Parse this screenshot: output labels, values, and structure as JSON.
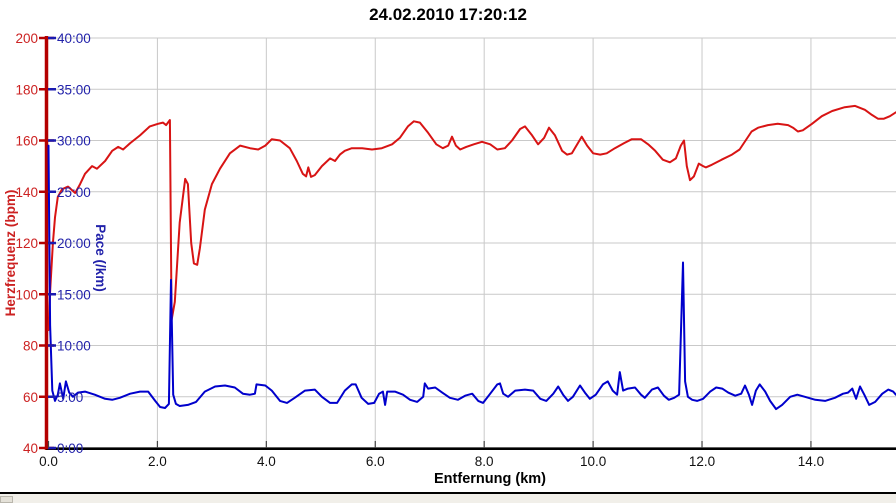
{
  "chart_data": {
    "type": "line",
    "title": "24.02.2010 17:20:12",
    "xlabel": "Entfernung (km)",
    "ylabel_left": "Herzfrequenz (bpm)",
    "ylabel_left2": "Pace (/km)",
    "x_range": [
      0,
      15.6
    ],
    "grid": true,
    "legend": "none",
    "x_ticks": [
      {
        "v": 0,
        "label": "0.0"
      },
      {
        "v": 2,
        "label": "2.0"
      },
      {
        "v": 4,
        "label": "4.0"
      },
      {
        "v": 6,
        "label": "6.0"
      },
      {
        "v": 8,
        "label": "8.0"
      },
      {
        "v": 10,
        "label": "10.0"
      },
      {
        "v": 12,
        "label": "12.0"
      },
      {
        "v": 14,
        "label": "14.0"
      }
    ],
    "axes": {
      "heart_rate": {
        "range": [
          40,
          200
        ],
        "label_color": "#cc2222",
        "axis_color": "#b40000",
        "ticks": [
          {
            "v": 200,
            "label": "200"
          },
          {
            "v": 180,
            "label": "180"
          },
          {
            "v": 160,
            "label": "160"
          },
          {
            "v": 140,
            "label": "140"
          },
          {
            "v": 120,
            "label": "120"
          },
          {
            "v": 100,
            "label": "100"
          },
          {
            "v": 80,
            "label": "80"
          },
          {
            "v": 60,
            "label": "60"
          },
          {
            "v": 40,
            "label": "40"
          }
        ]
      },
      "pace": {
        "range": [
          0,
          40
        ],
        "label_color": "#2222aa",
        "axis_color": "#1a1ab0",
        "ticks": [
          {
            "v": 40,
            "label": "40:00"
          },
          {
            "v": 35,
            "label": "35:00"
          },
          {
            "v": 30,
            "label": "30:00"
          },
          {
            "v": 25,
            "label": "25:00"
          },
          {
            "v": 20,
            "label": "20:00"
          },
          {
            "v": 15,
            "label": "15:00"
          },
          {
            "v": 10,
            "label": "10:00"
          },
          {
            "v": 5,
            "label": "5:00"
          },
          {
            "v": 0,
            "label": "0:00"
          }
        ]
      }
    },
    "series": [
      {
        "name": "Herzfrequenz (bpm)",
        "axis": "heart_rate",
        "color": "#d81414",
        "points": [
          [
            0.0,
            86
          ],
          [
            0.03,
            101
          ],
          [
            0.08,
            120
          ],
          [
            0.12,
            130
          ],
          [
            0.17,
            138
          ],
          [
            0.25,
            141
          ],
          [
            0.36,
            142
          ],
          [
            0.49,
            139.5
          ],
          [
            0.58,
            143
          ],
          [
            0.67,
            147
          ],
          [
            0.8,
            150
          ],
          [
            0.89,
            149
          ],
          [
            1.04,
            152
          ],
          [
            1.17,
            156
          ],
          [
            1.28,
            157.5
          ],
          [
            1.37,
            156.5
          ],
          [
            1.5,
            159
          ],
          [
            1.68,
            162
          ],
          [
            1.86,
            165.5
          ],
          [
            2.01,
            166.5
          ],
          [
            2.1,
            167
          ],
          [
            2.16,
            166
          ],
          [
            2.23,
            168
          ],
          [
            2.26,
            90
          ],
          [
            2.32,
            97
          ],
          [
            2.41,
            128
          ],
          [
            2.51,
            145
          ],
          [
            2.56,
            143
          ],
          [
            2.62,
            120
          ],
          [
            2.67,
            112
          ],
          [
            2.73,
            111.5
          ],
          [
            2.78,
            118
          ],
          [
            2.87,
            133
          ],
          [
            3.0,
            143
          ],
          [
            3.15,
            149
          ],
          [
            3.33,
            155
          ],
          [
            3.52,
            158
          ],
          [
            3.7,
            157
          ],
          [
            3.85,
            156.5
          ],
          [
            3.98,
            158
          ],
          [
            4.1,
            160.5
          ],
          [
            4.25,
            160
          ],
          [
            4.43,
            157
          ],
          [
            4.56,
            152
          ],
          [
            4.67,
            147
          ],
          [
            4.73,
            146
          ],
          [
            4.77,
            149.5
          ],
          [
            4.82,
            145.8
          ],
          [
            4.89,
            146.5
          ],
          [
            5.02,
            150
          ],
          [
            5.17,
            153
          ],
          [
            5.26,
            152
          ],
          [
            5.35,
            154.5
          ],
          [
            5.44,
            156
          ],
          [
            5.57,
            157
          ],
          [
            5.76,
            157
          ],
          [
            5.94,
            156.5
          ],
          [
            6.12,
            157
          ],
          [
            6.31,
            158.5
          ],
          [
            6.45,
            161
          ],
          [
            6.6,
            165.5
          ],
          [
            6.71,
            167.5
          ],
          [
            6.82,
            167
          ],
          [
            6.97,
            163
          ],
          [
            7.12,
            158.5
          ],
          [
            7.24,
            157
          ],
          [
            7.34,
            158
          ],
          [
            7.41,
            161.5
          ],
          [
            7.48,
            158
          ],
          [
            7.56,
            156.5
          ],
          [
            7.67,
            157.5
          ],
          [
            7.81,
            158.5
          ],
          [
            7.96,
            159.5
          ],
          [
            8.11,
            158.5
          ],
          [
            8.24,
            156.5
          ],
          [
            8.38,
            157
          ],
          [
            8.51,
            160
          ],
          [
            8.66,
            164.5
          ],
          [
            8.75,
            165.5
          ],
          [
            8.88,
            162
          ],
          [
            8.99,
            158.5
          ],
          [
            9.1,
            161
          ],
          [
            9.19,
            165
          ],
          [
            9.3,
            162
          ],
          [
            9.43,
            156
          ],
          [
            9.52,
            154.5
          ],
          [
            9.61,
            155
          ],
          [
            9.72,
            159
          ],
          [
            9.79,
            161.5
          ],
          [
            9.89,
            158
          ],
          [
            10.0,
            155
          ],
          [
            10.13,
            154.5
          ],
          [
            10.25,
            155
          ],
          [
            10.4,
            157
          ],
          [
            10.57,
            159
          ],
          [
            10.71,
            160.5
          ],
          [
            10.88,
            160.5
          ],
          [
            11.01,
            158.5
          ],
          [
            11.14,
            156
          ],
          [
            11.28,
            152.5
          ],
          [
            11.41,
            151.5
          ],
          [
            11.52,
            153
          ],
          [
            11.61,
            158
          ],
          [
            11.67,
            160
          ],
          [
            11.72,
            150
          ],
          [
            11.78,
            144.5
          ],
          [
            11.85,
            146
          ],
          [
            11.94,
            151
          ],
          [
            12.02,
            150
          ],
          [
            12.07,
            149.5
          ],
          [
            12.18,
            150.5
          ],
          [
            12.36,
            152.5
          ],
          [
            12.55,
            154.5
          ],
          [
            12.69,
            156.5
          ],
          [
            12.8,
            160
          ],
          [
            12.91,
            163.5
          ],
          [
            13.03,
            165
          ],
          [
            13.21,
            166
          ],
          [
            13.39,
            166.5
          ],
          [
            13.58,
            166
          ],
          [
            13.67,
            165
          ],
          [
            13.76,
            163.5
          ],
          [
            13.85,
            164
          ],
          [
            14.02,
            166.5
          ],
          [
            14.2,
            169.5
          ],
          [
            14.39,
            171.5
          ],
          [
            14.62,
            173
          ],
          [
            14.81,
            173.5
          ],
          [
            14.99,
            172
          ],
          [
            15.12,
            170
          ],
          [
            15.23,
            168.5
          ],
          [
            15.34,
            168.5
          ],
          [
            15.45,
            169.5
          ],
          [
            15.56,
            171
          ]
        ]
      },
      {
        "name": "Pace (/km)",
        "axis": "pace",
        "color": "#0000cc",
        "points": [
          [
            0.0,
            29.5
          ],
          [
            0.03,
            12
          ],
          [
            0.07,
            5.6
          ],
          [
            0.12,
            4.6
          ],
          [
            0.17,
            5.2
          ],
          [
            0.21,
            6.3
          ],
          [
            0.27,
            4.8
          ],
          [
            0.32,
            6.5
          ],
          [
            0.38,
            5.4
          ],
          [
            0.45,
            5.0
          ],
          [
            0.54,
            5.4
          ],
          [
            0.67,
            5.5
          ],
          [
            0.85,
            5.2
          ],
          [
            1.04,
            4.8
          ],
          [
            1.17,
            4.7
          ],
          [
            1.31,
            4.9
          ],
          [
            1.5,
            5.3
          ],
          [
            1.68,
            5.5
          ],
          [
            1.83,
            5.5
          ],
          [
            1.96,
            4.6
          ],
          [
            2.05,
            4.0
          ],
          [
            2.14,
            3.9
          ],
          [
            2.21,
            4.3
          ],
          [
            2.25,
            16.4
          ],
          [
            2.29,
            5.2
          ],
          [
            2.34,
            4.3
          ],
          [
            2.41,
            4.1
          ],
          [
            2.56,
            4.2
          ],
          [
            2.71,
            4.5
          ],
          [
            2.87,
            5.5
          ],
          [
            3.06,
            6.0
          ],
          [
            3.24,
            6.1
          ],
          [
            3.42,
            5.9
          ],
          [
            3.57,
            5.3
          ],
          [
            3.7,
            5.2
          ],
          [
            3.79,
            5.3
          ],
          [
            3.82,
            6.2
          ],
          [
            3.98,
            6.1
          ],
          [
            4.1,
            5.6
          ],
          [
            4.25,
            4.6
          ],
          [
            4.38,
            4.4
          ],
          [
            4.52,
            4.9
          ],
          [
            4.71,
            5.6
          ],
          [
            4.89,
            5.7
          ],
          [
            5.02,
            5.0
          ],
          [
            5.17,
            4.4
          ],
          [
            5.3,
            4.4
          ],
          [
            5.44,
            5.6
          ],
          [
            5.57,
            6.2
          ],
          [
            5.64,
            6.2
          ],
          [
            5.75,
            4.9
          ],
          [
            5.87,
            4.3
          ],
          [
            5.98,
            4.4
          ],
          [
            6.07,
            5.3
          ],
          [
            6.14,
            5.5
          ],
          [
            6.18,
            4.2
          ],
          [
            6.22,
            5.5
          ],
          [
            6.36,
            5.5
          ],
          [
            6.51,
            5.2
          ],
          [
            6.64,
            4.7
          ],
          [
            6.77,
            4.5
          ],
          [
            6.88,
            5.0
          ],
          [
            6.91,
            6.3
          ],
          [
            6.97,
            5.8
          ],
          [
            7.1,
            5.9
          ],
          [
            7.23,
            5.4
          ],
          [
            7.37,
            4.9
          ],
          [
            7.52,
            4.7
          ],
          [
            7.65,
            5.1
          ],
          [
            7.78,
            5.3
          ],
          [
            7.89,
            4.6
          ],
          [
            7.98,
            4.4
          ],
          [
            8.11,
            5.3
          ],
          [
            8.24,
            6.2
          ],
          [
            8.29,
            6.3
          ],
          [
            8.35,
            5.3
          ],
          [
            8.44,
            5.0
          ],
          [
            8.57,
            5.6
          ],
          [
            8.75,
            5.7
          ],
          [
            8.9,
            5.6
          ],
          [
            9.03,
            4.8
          ],
          [
            9.14,
            4.6
          ],
          [
            9.27,
            5.3
          ],
          [
            9.36,
            6.0
          ],
          [
            9.45,
            5.2
          ],
          [
            9.54,
            4.6
          ],
          [
            9.63,
            5.0
          ],
          [
            9.76,
            6.1
          ],
          [
            9.85,
            5.4
          ],
          [
            9.94,
            4.8
          ],
          [
            10.05,
            5.2
          ],
          [
            10.18,
            6.2
          ],
          [
            10.27,
            6.5
          ],
          [
            10.36,
            5.6
          ],
          [
            10.44,
            5.2
          ],
          [
            10.49,
            7.4
          ],
          [
            10.55,
            5.6
          ],
          [
            10.64,
            5.8
          ],
          [
            10.77,
            5.9
          ],
          [
            10.88,
            5.2
          ],
          [
            10.95,
            4.9
          ],
          [
            11.08,
            5.7
          ],
          [
            11.19,
            5.9
          ],
          [
            11.3,
            5.1
          ],
          [
            11.39,
            4.7
          ],
          [
            11.49,
            4.9
          ],
          [
            11.58,
            5.2
          ],
          [
            11.65,
            18.1
          ],
          [
            11.69,
            6.5
          ],
          [
            11.74,
            5.0
          ],
          [
            11.82,
            4.7
          ],
          [
            11.91,
            4.6
          ],
          [
            12.02,
            4.8
          ],
          [
            12.15,
            5.5
          ],
          [
            12.26,
            5.9
          ],
          [
            12.37,
            5.8
          ],
          [
            12.48,
            5.4
          ],
          [
            12.61,
            5.1
          ],
          [
            12.72,
            5.3
          ],
          [
            12.79,
            6.1
          ],
          [
            12.86,
            5.2
          ],
          [
            12.92,
            4.2
          ],
          [
            12.99,
            5.6
          ],
          [
            13.06,
            6.2
          ],
          [
            13.16,
            5.5
          ],
          [
            13.25,
            4.6
          ],
          [
            13.36,
            3.8
          ],
          [
            13.47,
            4.2
          ],
          [
            13.62,
            5.0
          ],
          [
            13.75,
            5.2
          ],
          [
            13.89,
            5.0
          ],
          [
            14.08,
            4.7
          ],
          [
            14.26,
            4.6
          ],
          [
            14.44,
            4.9
          ],
          [
            14.59,
            5.3
          ],
          [
            14.68,
            5.4
          ],
          [
            14.76,
            5.8
          ],
          [
            14.83,
            4.8
          ],
          [
            14.9,
            6.0
          ],
          [
            14.98,
            5.2
          ],
          [
            15.07,
            4.2
          ],
          [
            15.18,
            4.5
          ],
          [
            15.31,
            5.3
          ],
          [
            15.42,
            5.7
          ],
          [
            15.51,
            5.5
          ],
          [
            15.56,
            5.2
          ]
        ]
      }
    ]
  }
}
